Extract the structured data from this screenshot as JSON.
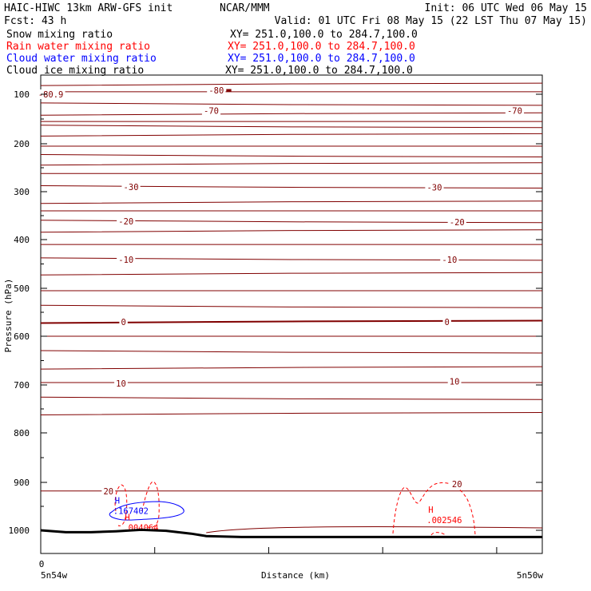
{
  "header": {
    "title_left": "HAIC-HIWC 13km ARW-GFS init",
    "org": "NCAR/MMM",
    "init": "Init: 06 UTC Wed 06 May 15",
    "fcst": "Fcst:   43 h",
    "valid": "Valid: 01 UTC Fri 08 May 15 (22 LST Thu 07 May 15)"
  },
  "legend": [
    {
      "name": "Snow mixing ratio",
      "xy": "XY= 251.0,100.0 to 284.7,100.0",
      "color": "#000000"
    },
    {
      "name": "Rain water mixing ratio",
      "xy": "XY= 251.0,100.0 to 284.7,100.0",
      "color": "#ff0000"
    },
    {
      "name": "Cloud water mixing ratio",
      "xy": "XY= 251.0,100.0 to 284.7,100.0",
      "color": "#0000ff"
    },
    {
      "name": "Cloud ice mixing ratio",
      "xy": "XY= 251.0,100.0 to 284.7,100.0",
      "color": "#000000"
    }
  ],
  "chart_data": {
    "type": "line",
    "ylabel": "Pressure (hPa)",
    "xlabel": "Distance (km)",
    "x_tick_label": "0",
    "x_left_label": "5n54w",
    "x_right_label": "5n50w",
    "yticks": [
      100,
      200,
      300,
      400,
      500,
      600,
      700,
      800,
      900,
      1000
    ],
    "ylim": [
      1050,
      75
    ],
    "xlim": [
      0,
      1
    ],
    "isotherm_color": "#800000",
    "temperature_levels_hPa": [
      80,
      95,
      120,
      140,
      155,
      165,
      182,
      205,
      225,
      242,
      262,
      290,
      322,
      340,
      362,
      382,
      410,
      440,
      470,
      505,
      538,
      570,
      600,
      632,
      665,
      695,
      728,
      760,
      918
    ],
    "contour_labels": [
      {
        "text": "-80",
        "x": 0.35,
        "p": 92
      },
      {
        "text": "-80.9",
        "x": 0.02,
        "p": 100
      },
      {
        "text": "-70",
        "x": 0.34,
        "p": 133
      },
      {
        "text": "-70",
        "x": 0.945,
        "p": 133
      },
      {
        "text": "-30",
        "x": 0.18,
        "p": 290
      },
      {
        "text": "-30",
        "x": 0.785,
        "p": 291
      },
      {
        "text": "-20",
        "x": 0.17,
        "p": 362
      },
      {
        "text": "-20",
        "x": 0.83,
        "p": 363
      },
      {
        "text": "-10",
        "x": 0.17,
        "p": 441
      },
      {
        "text": "-10",
        "x": 0.815,
        "p": 441
      },
      {
        "text": "0",
        "x": 0.165,
        "p": 570
      },
      {
        "text": "0",
        "x": 0.81,
        "p": 570
      },
      {
        "text": "10",
        "x": 0.16,
        "p": 697
      },
      {
        "text": "10",
        "x": 0.825,
        "p": 693
      },
      {
        "text": "20",
        "x": 0.135,
        "p": 918
      },
      {
        "text": "20",
        "x": 0.83,
        "p": 903
      }
    ],
    "extrema": [
      {
        "series": "Cloud water mixing ratio",
        "symbol": "H",
        "value": ".167402",
        "x": 0.17,
        "p": 964,
        "color": "#0000ff"
      },
      {
        "series": "Rain water mixing ratio",
        "symbol": "H",
        "value": ".004064",
        "x": 0.19,
        "p": 999,
        "color": "#ff0000"
      },
      {
        "series": "Rain water mixing ratio",
        "symbol": "H",
        "value": ".002546",
        "x": 0.795,
        "p": 983,
        "color": "#ff0000"
      }
    ],
    "terrain": {
      "x": [
        0,
        0.05,
        0.1,
        0.15,
        0.2,
        0.25,
        0.3,
        0.33,
        0.4,
        0.6,
        0.8,
        1.0
      ],
      "p": [
        1000,
        1004,
        1004,
        1002,
        999,
        1001,
        1007,
        1012,
        1014,
        1014,
        1014,
        1014
      ]
    }
  }
}
